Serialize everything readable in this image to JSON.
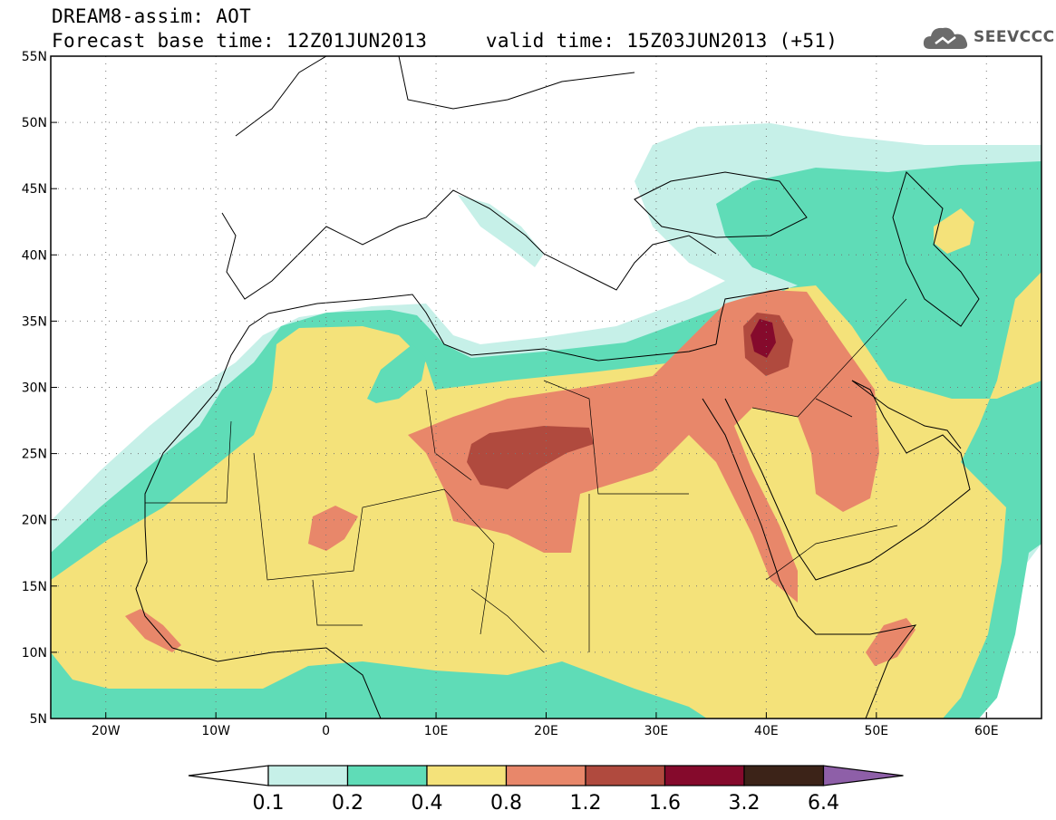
{
  "title": {
    "line1": "DREAM8-assim: AOT",
    "line2": "Forecast base time: 12Z01JUN2013     valid time: 15Z03JUN2013 (+51)"
  },
  "logo": {
    "text": "SEEVCCC",
    "icon": "cloud-icon"
  },
  "map": {
    "lon_range": [
      -25,
      65
    ],
    "lat_range": [
      5,
      55
    ],
    "lon_ticks": [
      {
        "v": -20,
        "label": "20W"
      },
      {
        "v": -10,
        "label": "10W"
      },
      {
        "v": 0,
        "label": "0"
      },
      {
        "v": 10,
        "label": "10E"
      },
      {
        "v": 20,
        "label": "20E"
      },
      {
        "v": 30,
        "label": "30E"
      },
      {
        "v": 40,
        "label": "40E"
      },
      {
        "v": 50,
        "label": "50E"
      },
      {
        "v": 60,
        "label": "60E"
      }
    ],
    "lat_ticks": [
      {
        "v": 55,
        "label": "55N"
      },
      {
        "v": 50,
        "label": "50N"
      },
      {
        "v": 45,
        "label": "45N"
      },
      {
        "v": 40,
        "label": "40N"
      },
      {
        "v": 35,
        "label": "35N"
      },
      {
        "v": 30,
        "label": "30N"
      },
      {
        "v": 25,
        "label": "25N"
      },
      {
        "v": 20,
        "label": "20N"
      },
      {
        "v": 15,
        "label": "15N"
      },
      {
        "v": 10,
        "label": "10N"
      },
      {
        "v": 5,
        "label": "5N"
      }
    ],
    "grid": "dotted"
  },
  "colorbar": {
    "levels": [
      "0.1",
      "0.2",
      "0.4",
      "0.8",
      "1.2",
      "1.6",
      "3.2",
      "6.4"
    ],
    "colors": [
      "#ffffff",
      "#c6f0e8",
      "#5fdcb7",
      "#f4e27a",
      "#e8876a",
      "#b04a3e",
      "#850a2c",
      "#3c2318",
      "#8e5fa8"
    ]
  },
  "colors": {
    "c01": "#c6f0e8",
    "c02": "#5fdcb7",
    "c04": "#f4e27a",
    "c08": "#e8876a",
    "c12": "#b04a3e",
    "c16": "#850a2c",
    "c32": "#3c2318"
  }
}
